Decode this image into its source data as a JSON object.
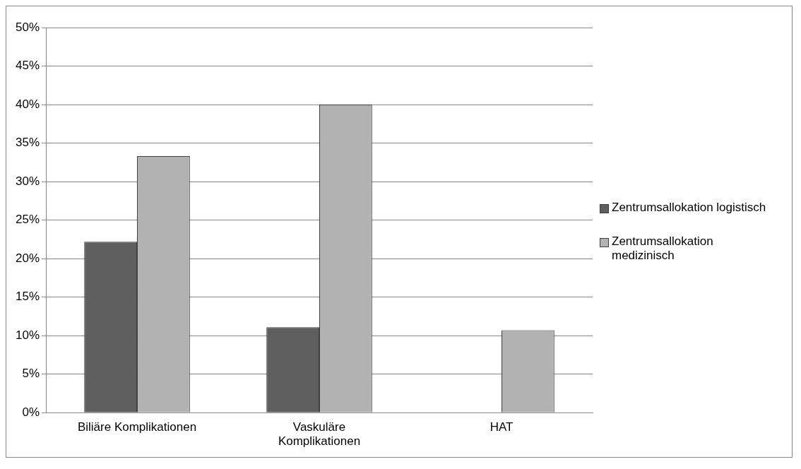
{
  "chart_data": {
    "type": "bar",
    "categories": [
      "Biliäre Komplikationen",
      "Vaskuläre Komplikationen",
      "HAT"
    ],
    "series": [
      {
        "name": "Zentrumsallokation logistisch",
        "color": "#5f5f5f",
        "values": [
          22.2,
          11.1,
          0
        ]
      },
      {
        "name": "Zentrumsallokation medizinisch",
        "color": "#b2b2b2",
        "values": [
          33.3,
          40.0,
          10.7
        ]
      }
    ],
    "ylim": [
      0,
      50
    ],
    "yticks": [
      {
        "value": 0,
        "label": "0%"
      },
      {
        "value": 5,
        "label": "5%"
      },
      {
        "value": 10,
        "label": "10%"
      },
      {
        "value": 15,
        "label": "15%"
      },
      {
        "value": 20,
        "label": "20%"
      },
      {
        "value": 25,
        "label": "25%"
      },
      {
        "value": 30,
        "label": "30%"
      },
      {
        "value": 35,
        "label": "35%"
      },
      {
        "value": 40,
        "label": "40%"
      },
      {
        "value": 45,
        "label": "45%"
      },
      {
        "value": 50,
        "label": "50%"
      }
    ],
    "grid": "y",
    "legend": "right"
  }
}
